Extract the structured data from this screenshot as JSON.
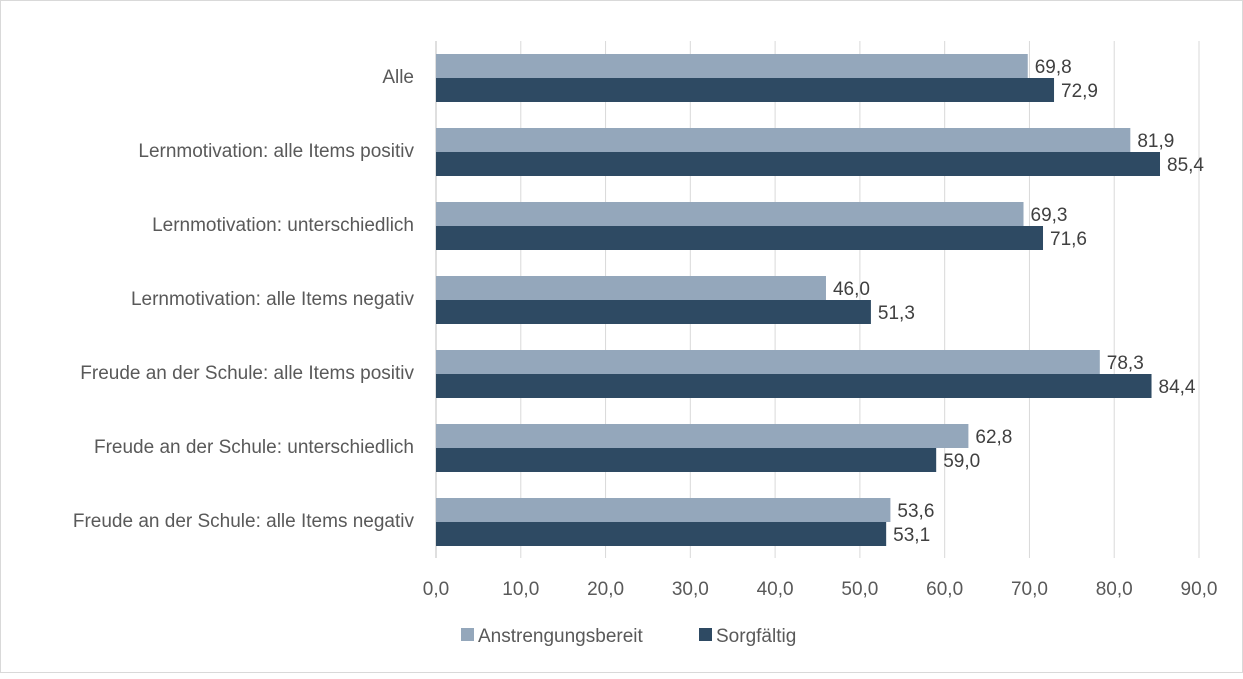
{
  "chart_data": {
    "type": "bar",
    "orientation": "horizontal",
    "title": "",
    "xlabel": "",
    "ylabel": "",
    "categories": [
      "Alle",
      "Lernmotivation: alle Items positiv",
      "Lernmotivation: unterschiedlich",
      "Lernmotivation: alle Items negativ",
      "Freude an der Schule: alle Items positiv",
      "Freude an der Schule: unterschiedlich",
      "Freude an der Schule: alle Items negativ"
    ],
    "series": [
      {
        "name": "Anstrengungsbereit",
        "color": "#94a7bb",
        "values": [
          69.8,
          81.9,
          69.3,
          46.0,
          78.3,
          62.8,
          53.6
        ],
        "labels": [
          "69,8",
          "81,9",
          "69,3",
          "46,0",
          "78,3",
          "62,8",
          "53,6"
        ]
      },
      {
        "name": "Sorgfältig",
        "color": "#2e4a63",
        "values": [
          72.9,
          85.4,
          71.6,
          51.3,
          84.4,
          59.0,
          53.1
        ],
        "labels": [
          "72,9",
          "85,4",
          "71,6",
          "51,3",
          "84,4",
          "59,0",
          "53,1"
        ]
      }
    ],
    "xlim": [
      0,
      90
    ],
    "x_ticks": [
      0,
      10,
      20,
      30,
      40,
      50,
      60,
      70,
      80,
      90
    ],
    "x_tick_labels": [
      "0,0",
      "10,0",
      "20,0",
      "30,0",
      "40,0",
      "50,0",
      "60,0",
      "70,0",
      "80,0",
      "90,0"
    ],
    "grid": true,
    "legend_position": "bottom"
  }
}
